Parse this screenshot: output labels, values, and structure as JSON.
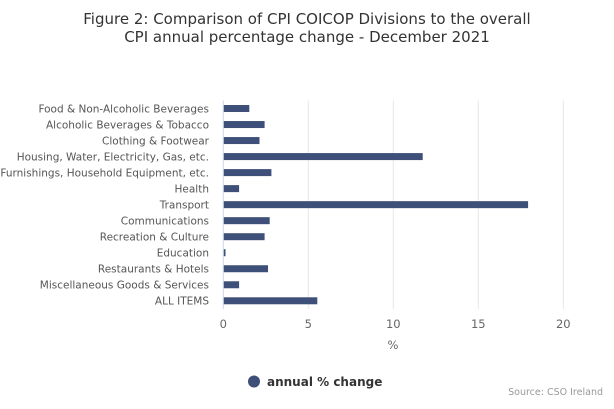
{
  "chart_data": {
    "type": "bar",
    "orientation": "horizontal",
    "title": "Figure 2: Comparison of CPI COICOP Divisions to the overall",
    "subtitle": "CPI annual percentage change - December 2021",
    "categories": [
      "Food & Non-Alcoholic Beverages",
      "Alcoholic Beverages & Tobacco",
      "Clothing & Footwear",
      "Housing, Water, Electricity, Gas, etc.",
      "Furnishings, Household Equipment, etc.",
      "Health",
      "Transport",
      "Communications",
      "Recreation & Culture",
      "Education",
      "Restaurants & Hotels",
      "Miscellaneous Goods & Services",
      "ALL ITEMS"
    ],
    "series": [
      {
        "name": "annual % change",
        "color": "#3e5079",
        "values": [
          1.5,
          2.4,
          2.1,
          11.7,
          2.8,
          0.9,
          17.9,
          2.7,
          2.4,
          0.1,
          2.6,
          0.9,
          5.5
        ]
      }
    ],
    "xlabel": "%",
    "ylabel": "",
    "xlim": [
      0,
      20
    ],
    "xticks": [
      0,
      5,
      10,
      15,
      20
    ],
    "xtick_labels": [
      "0",
      "5",
      "10",
      "15",
      "20"
    ],
    "grid": true,
    "legend": {
      "position": "bottom-center",
      "entries": [
        "annual % change"
      ]
    },
    "credits": "Source: CSO Ireland",
    "colors": {
      "bar": "#3e5079",
      "grid": "#e6e6e6",
      "axis": "#ccd6eb"
    }
  }
}
